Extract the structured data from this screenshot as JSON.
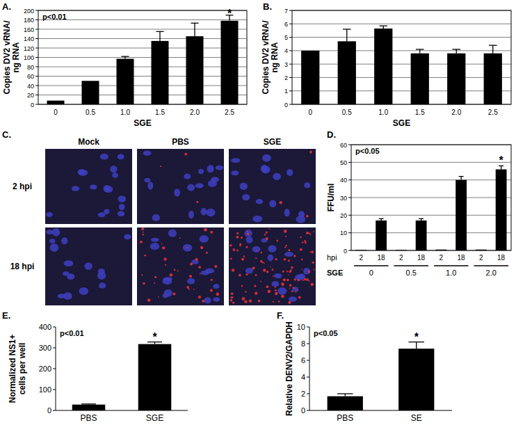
{
  "chart_data": [
    {
      "type": "bar",
      "title": "A.",
      "ylabel": "Copies DV2 vRNA/\nng RNA",
      "xlabel": "SGE",
      "categories": [
        "0",
        "0.5",
        "1.0",
        "1.5",
        "2.0",
        "2.5"
      ],
      "values": [
        8,
        50,
        97,
        135,
        145,
        178
      ],
      "errors": [
        0,
        0,
        5,
        20,
        28,
        12
      ],
      "color": "#000000",
      "ylim": [
        0,
        200
      ],
      "yticks": [
        0,
        20,
        40,
        60,
        80,
        100,
        120,
        140,
        160,
        180,
        200
      ],
      "grid": true,
      "annotations": [
        {
          "text": "p<0.01"
        },
        {
          "text": "*",
          "index": 5
        }
      ]
    },
    {
      "type": "bar",
      "title": "B.",
      "ylabel": "Copies DV2 vRNA/\nng RNA",
      "xlabel": "SGE",
      "categories": [
        "0",
        "0.5",
        "1.0",
        "1.5",
        "2.0",
        "2.5"
      ],
      "values": [
        4,
        4.7,
        5.65,
        3.8,
        3.8,
        3.8
      ],
      "errors": [
        0,
        0.9,
        0.2,
        0.3,
        0.3,
        0.6
      ],
      "color": "#000000",
      "ylim": [
        0,
        7
      ],
      "yticks": [
        0,
        1,
        2,
        3,
        4,
        5,
        6,
        7
      ],
      "grid": true
    },
    {
      "type": "image_grid",
      "title": "C.",
      "columns": [
        "Mock",
        "PBS",
        "SGE"
      ],
      "rows": [
        "2 hpi",
        "18 hpi"
      ]
    },
    {
      "type": "bar",
      "title": "D.",
      "ylabel": "FFU/ml",
      "categories": [
        "2",
        "18",
        "2",
        "18",
        "2",
        "18",
        "2",
        "18"
      ],
      "category_label": "hpi",
      "groups": [
        "0",
        "0.5",
        "1.0",
        "2.0"
      ],
      "group_label": "SGE",
      "values": [
        0.3,
        17,
        0.3,
        17,
        0.5,
        40,
        0.5,
        46
      ],
      "errors": [
        0,
        1,
        0,
        1,
        0,
        2,
        0,
        2
      ],
      "color": "#000000",
      "ylim": [
        0,
        60
      ],
      "yticks": [
        0,
        10,
        20,
        30,
        40,
        50,
        60
      ],
      "grid": true,
      "annotations": [
        {
          "text": "p<0.05"
        },
        {
          "text": "*",
          "index": 7
        }
      ]
    },
    {
      "type": "bar",
      "title": "E.",
      "ylabel": "Normalized NS1+\ncells per well",
      "categories": [
        "PBS",
        "SGE"
      ],
      "values": [
        28,
        318
      ],
      "errors": [
        3,
        10
      ],
      "color": "#000000",
      "ylim": [
        0,
        400
      ],
      "yticks": [
        0,
        100,
        200,
        300,
        400
      ],
      "grid": false,
      "annotations": [
        {
          "text": "p<0.01"
        },
        {
          "text": "*",
          "index": 1
        }
      ]
    },
    {
      "type": "bar",
      "title": "F.",
      "ylabel": "Relative DENV2/GAPDH",
      "categories": [
        "PBS",
        "SE"
      ],
      "values": [
        1.7,
        7.4
      ],
      "errors": [
        0.3,
        0.8
      ],
      "color": "#000000",
      "ylim": [
        0,
        10
      ],
      "yticks": [
        0,
        2,
        4,
        6,
        8,
        10
      ],
      "grid": false,
      "annotations": [
        {
          "text": "p<0.05"
        },
        {
          "text": "*",
          "index": 1
        }
      ]
    }
  ]
}
